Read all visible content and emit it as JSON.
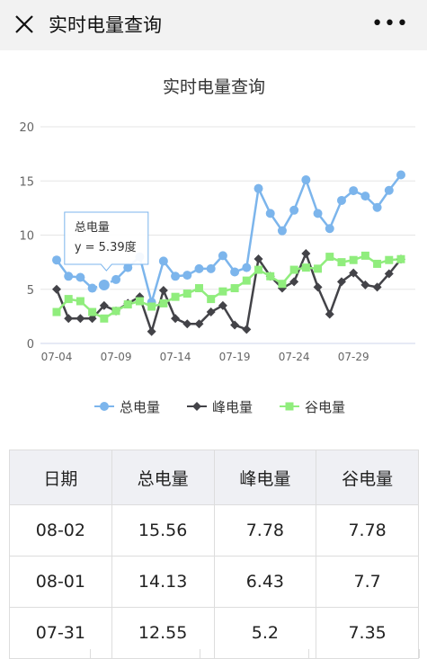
{
  "header": {
    "title": "实时电量查询"
  },
  "chart_data": {
    "type": "line",
    "title": "实时电量查询",
    "categories": [
      "07-04",
      null,
      null,
      null,
      null,
      "07-09",
      null,
      null,
      null,
      null,
      "07-14",
      null,
      null,
      null,
      null,
      "07-19",
      null,
      null,
      null,
      null,
      "07-24",
      null,
      null,
      null,
      null,
      "07-29",
      null,
      null,
      null,
      null
    ],
    "series": [
      {
        "name": "总电量",
        "color": "#7cb5ec",
        "marker": "circle",
        "values": [
          7.7,
          6.2,
          6.1,
          5.1,
          5.39,
          5.9,
          7.0,
          8.0,
          3.8,
          7.6,
          6.2,
          6.3,
          6.9,
          6.9,
          8.1,
          6.6,
          7.0,
          14.3,
          12.0,
          10.4,
          12.3,
          15.1,
          12.0,
          10.6,
          13.2,
          14.1,
          13.6,
          12.55,
          14.13,
          15.56
        ]
      },
      {
        "name": "峰电量",
        "color": "#434348",
        "marker": "diamond",
        "values": [
          5.0,
          2.3,
          2.3,
          2.3,
          3.5,
          3.0,
          3.7,
          4.3,
          1.1,
          4.9,
          2.3,
          1.8,
          1.8,
          2.9,
          3.5,
          1.7,
          1.3,
          7.8,
          6.2,
          5.1,
          5.7,
          8.3,
          5.2,
          2.7,
          5.7,
          6.5,
          5.4,
          5.2,
          6.43,
          7.78
        ]
      },
      {
        "name": "谷电量",
        "color": "#90ed7d",
        "marker": "square",
        "values": [
          2.9,
          4.1,
          3.9,
          2.9,
          2.3,
          3.0,
          3.6,
          3.9,
          3.4,
          3.7,
          4.3,
          4.6,
          5.1,
          4.1,
          4.8,
          5.1,
          5.8,
          6.8,
          6.2,
          5.5,
          6.8,
          7.0,
          6.9,
          8.0,
          7.5,
          7.7,
          8.1,
          7.35,
          7.7,
          7.78
        ]
      }
    ],
    "ylim": [
      0,
      20
    ],
    "yticks": [
      0,
      5,
      10,
      15,
      20
    ],
    "grid": true,
    "legend": "bottom",
    "tooltip": {
      "series": 0,
      "point": 4,
      "title": "总电量",
      "text": "y = 5.39度"
    }
  },
  "table": {
    "columns": [
      "日期",
      "总电量",
      "峰电量",
      "谷电量"
    ],
    "rows": [
      [
        "08-02",
        15.56,
        7.78,
        7.78
      ],
      [
        "08-01",
        14.13,
        6.43,
        7.7
      ],
      [
        "07-31",
        12.55,
        5.2,
        7.35
      ]
    ]
  }
}
